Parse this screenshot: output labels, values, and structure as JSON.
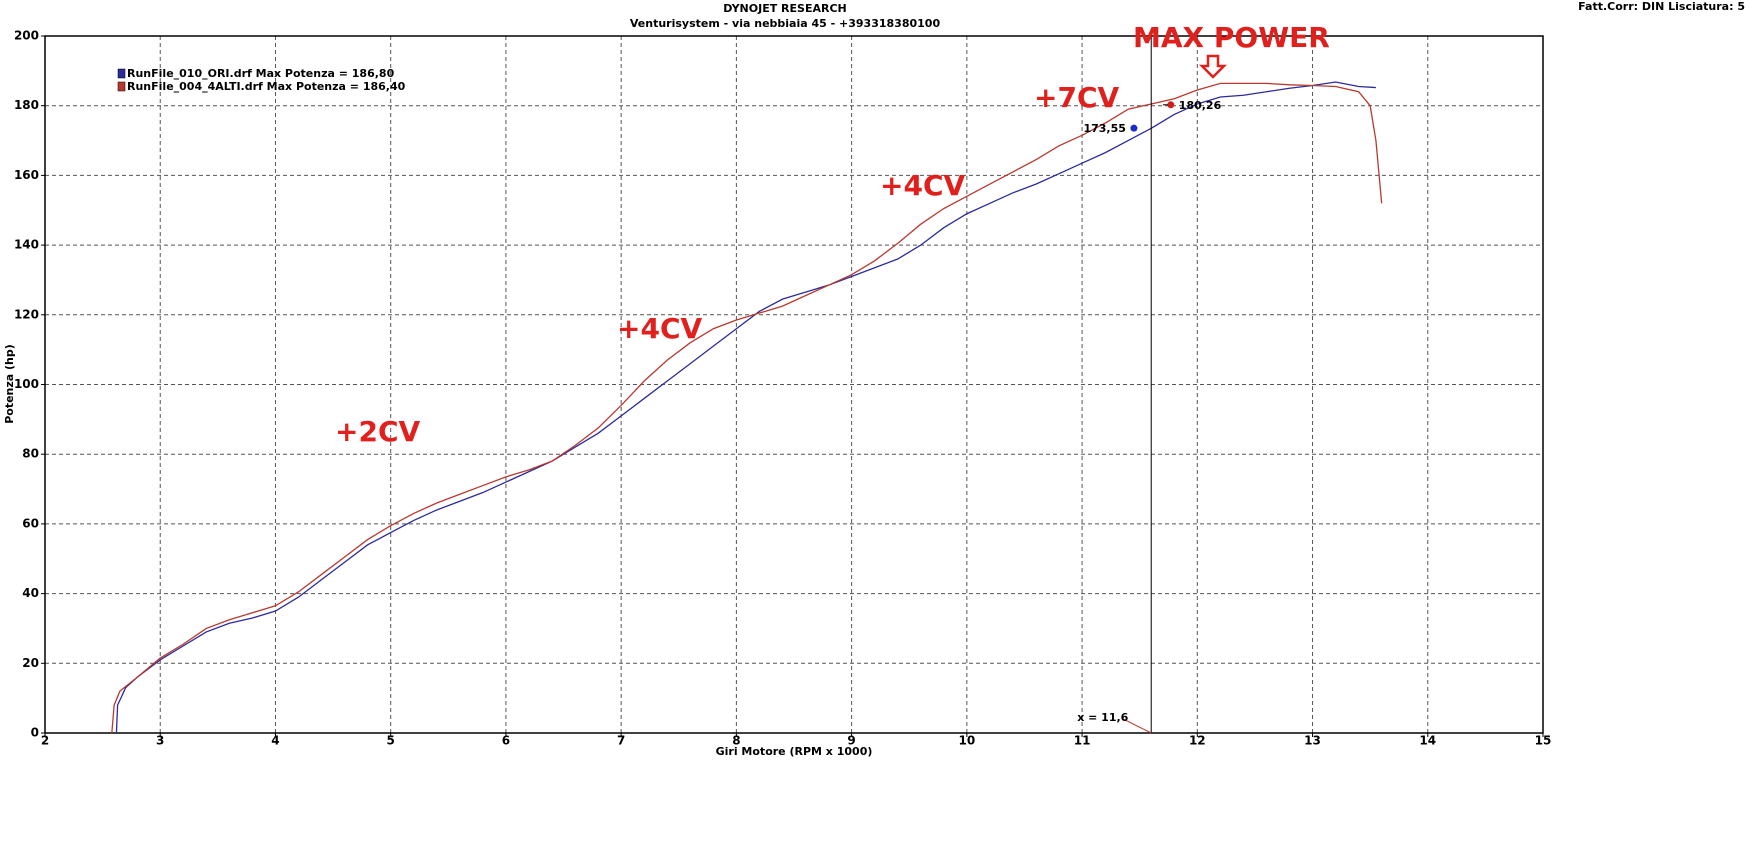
{
  "chart_data": {
    "type": "line",
    "title": "DYNOJET RESEARCH",
    "subtitle": "Venturisystem - via nebbiaia 45 - +393318380100",
    "corner_note": "Fatt.Corr: DIN  Lisciatura: 5",
    "x_label": "Giri Motore (RPM x 1000)",
    "y_label": "Potenza (hp)",
    "xlim": [
      2,
      15
    ],
    "ylim": [
      0,
      200
    ],
    "xticks": [
      2,
      3,
      4,
      5,
      6,
      7,
      8,
      9,
      10,
      11,
      12,
      13,
      14,
      15
    ],
    "yticks": [
      0,
      20,
      40,
      60,
      80,
      100,
      120,
      140,
      160,
      180,
      200
    ],
    "grid": true,
    "series": [
      {
        "name": "RunFile_010_ORI.drf Max Potenza = 186,80",
        "color": "#2b2b9c",
        "x": [
          2.62,
          2.63,
          2.7,
          2.8,
          3.0,
          3.2,
          3.4,
          3.6,
          3.8,
          4.0,
          4.2,
          4.4,
          4.6,
          4.8,
          5.0,
          5.2,
          5.4,
          5.6,
          5.8,
          6.0,
          6.2,
          6.4,
          6.6,
          6.8,
          7.0,
          7.2,
          7.4,
          7.6,
          7.8,
          8.0,
          8.2,
          8.4,
          8.6,
          8.8,
          9.0,
          9.2,
          9.4,
          9.6,
          9.8,
          10.0,
          10.2,
          10.4,
          10.6,
          10.8,
          11.0,
          11.2,
          11.4,
          11.6,
          11.8,
          12.0,
          12.2,
          12.4,
          12.6,
          12.8,
          13.0,
          13.2,
          13.4,
          13.55
        ],
        "values": [
          0,
          8,
          13,
          16,
          21,
          25,
          29,
          31.5,
          33,
          35,
          39,
          44,
          49,
          54,
          57.5,
          61,
          64,
          66.5,
          69,
          72,
          75,
          78,
          82,
          86,
          91,
          96,
          101,
          106,
          111,
          116,
          121,
          124.5,
          126.5,
          128.5,
          131,
          133.5,
          136,
          140,
          145,
          149,
          152,
          155,
          157.5,
          160.5,
          163.5,
          166.5,
          170,
          173.5,
          177.5,
          180.5,
          182.5,
          183,
          184,
          185,
          185.8,
          186.8,
          185.5,
          185.2
        ]
      },
      {
        "name": "RunFile_004_4ALTI.drf Max Potenza = 186,40",
        "color": "#b8392e",
        "x": [
          2.58,
          2.6,
          2.65,
          2.8,
          3.0,
          3.2,
          3.4,
          3.6,
          3.8,
          4.0,
          4.2,
          4.4,
          4.6,
          4.8,
          5.0,
          5.2,
          5.4,
          5.6,
          5.8,
          6.0,
          6.2,
          6.4,
          6.6,
          6.8,
          7.0,
          7.2,
          7.4,
          7.6,
          7.8,
          8.0,
          8.2,
          8.4,
          8.6,
          8.8,
          9.0,
          9.2,
          9.4,
          9.6,
          9.8,
          10.0,
          10.2,
          10.4,
          10.6,
          10.8,
          11.0,
          11.2,
          11.4,
          11.6,
          11.8,
          12.0,
          12.2,
          12.6,
          12.8,
          13.0,
          13.2,
          13.4,
          13.5,
          13.55,
          13.6
        ],
        "values": [
          0,
          8,
          12,
          16,
          21.5,
          25.5,
          30,
          32.5,
          34.5,
          36.5,
          40.5,
          45.5,
          50.5,
          55.5,
          59.5,
          63,
          66,
          68.5,
          71,
          73.5,
          75.5,
          78,
          82.5,
          87.5,
          94,
          101,
          107,
          112,
          116,
          118.5,
          120.5,
          122.5,
          125.5,
          128.5,
          131.5,
          135.5,
          140.5,
          146,
          150.5,
          154,
          157.5,
          161,
          164.5,
          168.5,
          171.5,
          175,
          179,
          180.5,
          182,
          184.5,
          186.4,
          186.4,
          186,
          185.8,
          185.5,
          184,
          180,
          170,
          152
        ]
      }
    ],
    "points": [
      {
        "x": 11.45,
        "value": 173.55,
        "value_label": "173,55",
        "color": "#1a2acc"
      },
      {
        "x": 11.77,
        "value": 180.26,
        "value_label": "180,26",
        "color": "#d0201c"
      }
    ],
    "cursor": {
      "x": 11.6,
      "label": "x = 11,6"
    },
    "annotations": [
      "+2CV",
      "+4CV",
      "+4CV",
      "+7CV",
      "MAX POWER"
    ]
  }
}
